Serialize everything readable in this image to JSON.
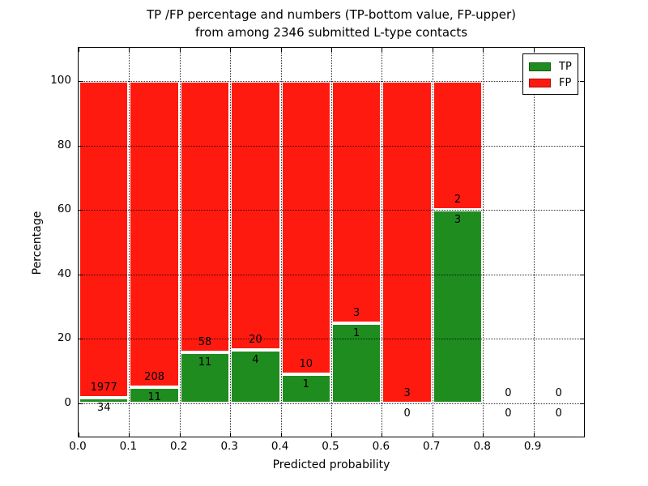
{
  "figure": {
    "title_line1": "TP /FP percentage and numbers (TP-bottom value, FP-upper)",
    "title_line2": "from among 2346 submitted L-type contacts",
    "xlabel": "Predicted probability",
    "ylabel": "Percentage"
  },
  "legend": {
    "items": [
      {
        "label": "TP",
        "color": "#1f8c1f"
      },
      {
        "label": "FP",
        "color": "#ff1a10"
      }
    ]
  },
  "colors": {
    "tp_green": "#1f8c1f",
    "fp_red": "#ff1a10",
    "bar_edge": "#ffffff",
    "grid": "#000000",
    "background": "#ffffff"
  },
  "chart_data": {
    "type": "bar",
    "stacked": true,
    "title": "TP /FP percentage and numbers (TP-bottom value, FP-upper) from among 2346 submitted L-type contacts",
    "xlabel": "Predicted probability",
    "ylabel": "Percentage",
    "total_contacts": 2346,
    "xlim": [
      0.0,
      1.0
    ],
    "ylim": [
      -10.5,
      110
    ],
    "x_tick_labels": [
      "0.0",
      "0.1",
      "0.2",
      "0.3",
      "0.4",
      "0.5",
      "0.6",
      "0.7",
      "0.8",
      "0.9"
    ],
    "y_tick_values": [
      0,
      20,
      40,
      60,
      80,
      100
    ],
    "grid": true,
    "legend_position": "upper right",
    "series": [
      {
        "name": "TP",
        "color": "#1f8c1f",
        "position": "bottom"
      },
      {
        "name": "FP",
        "color": "#ff1a10",
        "position": "top"
      }
    ],
    "bins": [
      {
        "range": [
          0.0,
          0.1
        ],
        "tp": 34,
        "fp": 1977,
        "tp_pct": 1.69,
        "bar": true
      },
      {
        "range": [
          0.1,
          0.2
        ],
        "tp": 11,
        "fp": 208,
        "tp_pct": 5.02,
        "bar": true
      },
      {
        "range": [
          0.2,
          0.3
        ],
        "tp": 11,
        "fp": 58,
        "tp_pct": 15.94,
        "bar": true
      },
      {
        "range": [
          0.3,
          0.4
        ],
        "tp": 4,
        "fp": 20,
        "tp_pct": 16.67,
        "bar": true
      },
      {
        "range": [
          0.4,
          0.5
        ],
        "tp": 1,
        "fp": 10,
        "tp_pct": 9.09,
        "bar": true
      },
      {
        "range": [
          0.5,
          0.6
        ],
        "tp": 1,
        "fp": 3,
        "tp_pct": 25.0,
        "bar": true
      },
      {
        "range": [
          0.6,
          0.7
        ],
        "tp": 0,
        "fp": 3,
        "tp_pct": 0.0,
        "bar": true
      },
      {
        "range": [
          0.7,
          0.8
        ],
        "tp": 3,
        "fp": 2,
        "tp_pct": 60.0,
        "bar": true
      },
      {
        "range": [
          0.8,
          0.9
        ],
        "tp": 0,
        "fp": 0,
        "tp_pct": null,
        "bar": false
      },
      {
        "range": [
          0.9,
          1.0
        ],
        "tp": 0,
        "fp": 0,
        "tp_pct": null,
        "bar": false
      }
    ]
  }
}
